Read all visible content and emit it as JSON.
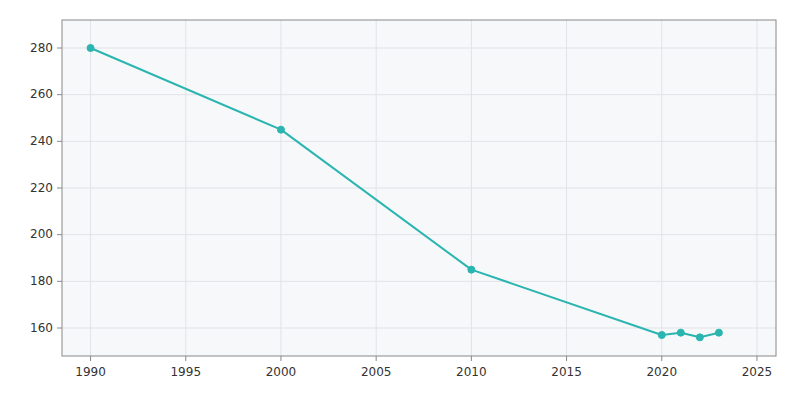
{
  "chart_data": {
    "type": "line",
    "x": [
      1990,
      2000,
      2010,
      2020,
      2021,
      2022,
      2023
    ],
    "values": [
      280,
      245,
      185,
      157,
      158,
      156,
      158
    ],
    "color": "#2ab5b0",
    "marker": "circle",
    "xlim": [
      1988.5,
      2026
    ],
    "ylim": [
      148,
      292
    ],
    "xticks": [
      1990,
      1995,
      2000,
      2005,
      2010,
      2015,
      2020,
      2025
    ],
    "yticks": [
      160,
      180,
      200,
      220,
      240,
      260,
      280
    ],
    "grid": true
  }
}
